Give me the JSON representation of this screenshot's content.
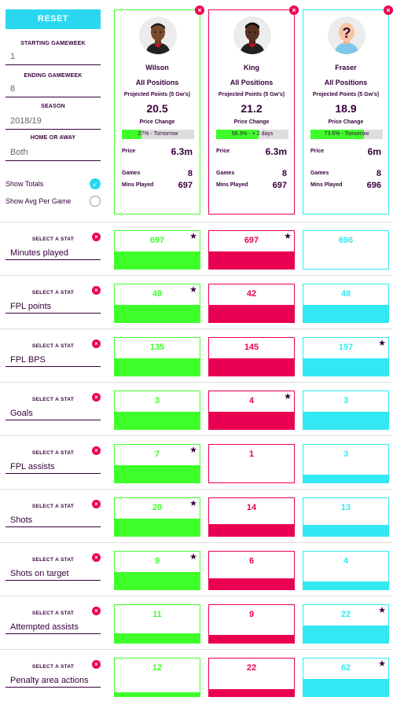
{
  "controls": {
    "reset_label": "RESET",
    "starting_gw_label": "STARTING GAMEWEEK",
    "starting_gw_value": "1",
    "ending_gw_label": "ENDING GAMEWEEK",
    "ending_gw_value": "8",
    "season_label": "SEASON",
    "season_value": "2018/19",
    "home_away_label": "HOME OR AWAY",
    "home_away_value": "Both",
    "show_totals_label": "Show Totals",
    "show_avg_label": "Show Avg Per Game"
  },
  "colors": {
    "p1": "#3fff2a",
    "p2": "#e90052",
    "p3": "#33e8f2"
  },
  "players": [
    {
      "name": "Wilson",
      "positions": "All Positions",
      "proj_label": "Projected Points (5 Gw's)",
      "proj": "20.5",
      "pc_label": "Price Change",
      "pc_text": "27% - Tomorrow",
      "pc_pct": 27,
      "price_label": "Price",
      "price": "6.3m",
      "games_label": "Games",
      "games": "8",
      "mins_label": "Mins Played",
      "mins": "697"
    },
    {
      "name": "King",
      "positions": "All Positions",
      "proj_label": "Projected Points (5 Gw's)",
      "proj": "21.2",
      "pc_label": "Price Change",
      "pc_text": "58.3% - > 2 days",
      "pc_pct": 58.3,
      "price_label": "Price",
      "price": "6.3m",
      "games_label": "Games",
      "games": "8",
      "mins_label": "Mins Played",
      "mins": "697"
    },
    {
      "name": "Fraser",
      "positions": "All Positions",
      "proj_label": "Projected Points (5 Gw's)",
      "proj": "18.9",
      "pc_label": "Price Change",
      "pc_text": "73.6% - Tomorrow",
      "pc_pct": 73.6,
      "price_label": "Price",
      "price": "6m",
      "games_label": "Games",
      "games": "8",
      "mins_label": "Mins Played",
      "mins": "696"
    }
  ],
  "select_label": "SELECT A STAT",
  "stats": [
    {
      "name": "Minutes played",
      "values": [
        "697",
        "697",
        "696"
      ],
      "fills": [
        0.46,
        0.46,
        0.0
      ],
      "star": [
        true,
        true,
        false
      ]
    },
    {
      "name": "FPL points",
      "values": [
        "49",
        "42",
        "48"
      ],
      "fills": [
        0.46,
        0.46,
        0.46
      ],
      "star": [
        true,
        false,
        false
      ]
    },
    {
      "name": "FPL BPS",
      "values": [
        "135",
        "145",
        "197"
      ],
      "fills": [
        0.46,
        0.46,
        0.46
      ],
      "star": [
        false,
        false,
        true
      ]
    },
    {
      "name": "Goals",
      "values": [
        "3",
        "4",
        "3"
      ],
      "fills": [
        0.46,
        0.46,
        0.46
      ],
      "star": [
        false,
        true,
        false
      ]
    },
    {
      "name": "FPL assists",
      "values": [
        "7",
        "1",
        "3"
      ],
      "fills": [
        0.46,
        0.0,
        0.2
      ],
      "star": [
        true,
        false,
        false
      ]
    },
    {
      "name": "Shots",
      "values": [
        "20",
        "14",
        "13"
      ],
      "fills": [
        0.46,
        0.32,
        0.3
      ],
      "star": [
        true,
        false,
        false
      ]
    },
    {
      "name": "Shots on target",
      "values": [
        "9",
        "6",
        "4"
      ],
      "fills": [
        0.46,
        0.3,
        0.2
      ],
      "star": [
        true,
        false,
        false
      ]
    },
    {
      "name": "Attempted assists",
      "values": [
        "11",
        "9",
        "22"
      ],
      "fills": [
        0.24,
        0.2,
        0.46
      ],
      "star": [
        false,
        false,
        true
      ]
    },
    {
      "name": "Penalty area actions",
      "values": [
        "12",
        "22",
        "62"
      ],
      "fills": [
        0.1,
        0.18,
        0.46
      ],
      "star": [
        false,
        false,
        true
      ]
    }
  ]
}
